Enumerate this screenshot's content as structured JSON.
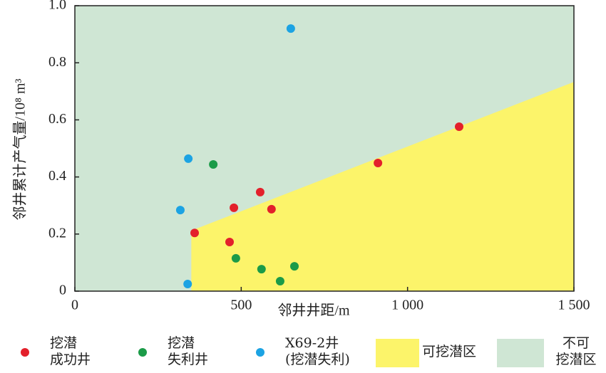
{
  "chart_data": {
    "type": "scatter",
    "x_label": "邻井井距/m",
    "y_label": "邻井累计产气量/10⁸ m³",
    "xlim": [
      0,
      1500
    ],
    "xticks": [
      0,
      500,
      {
        "value": 1000,
        "label": "1 000"
      },
      {
        "value": 1500,
        "label": "1 500"
      }
    ],
    "ylim": [
      0,
      1
    ],
    "yticks": [
      0,
      0.2,
      0.4,
      0.6,
      0.8,
      {
        "value": 1,
        "label": "1.0"
      }
    ],
    "series": [
      {
        "name": "挖潜\n成功井",
        "color": "#e3202b",
        "x": [
          360,
          465,
          478,
          557,
          591,
          911,
          1155
        ],
        "values": [
          0.204,
          0.172,
          0.292,
          0.347,
          0.287,
          0.449,
          0.576
        ]
      },
      {
        "name": "挖潜\n失利井",
        "color": "#1b9b48",
        "x": [
          416,
          484,
          561,
          617,
          660
        ],
        "values": [
          0.444,
          0.115,
          0.077,
          0.035,
          0.087
        ]
      },
      {
        "name": "X69-2井\n(挖潜失利)",
        "color": "#1ca3e3",
        "x": [
          649,
          341,
          317,
          339
        ],
        "values": [
          0.92,
          0.464,
          0.284,
          0.025
        ]
      }
    ],
    "regions": [
      {
        "name": "可挖潜区",
        "color": "#fcf46a",
        "x": [
          350,
          350,
          1500,
          1500
        ],
        "y": [
          0,
          0.212,
          0.733,
          0
        ]
      },
      {
        "name": "不可\n挖潜区",
        "color": "#cfe6d4"
      }
    ]
  }
}
